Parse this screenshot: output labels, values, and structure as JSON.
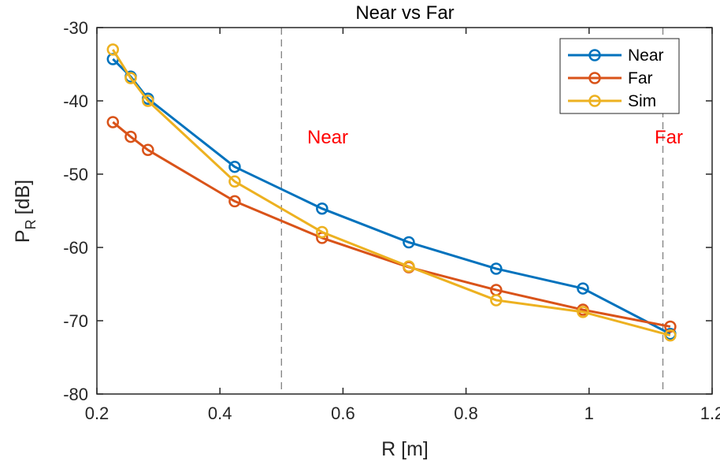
{
  "chart_data": {
    "type": "line",
    "title": "Near vs Far",
    "xlabel": "R [m]",
    "ylabel_main": "P",
    "ylabel_sub": "R",
    "ylabel_unit": "[dB]",
    "xlim": [
      0.2,
      1.2
    ],
    "ylim": [
      -80,
      -30
    ],
    "xticks": [
      "0.2",
      "0.4",
      "0.6",
      "0.8",
      "1",
      "1.2"
    ],
    "xtick_values": [
      0.2,
      0.4,
      0.6,
      0.8,
      1.0,
      1.2
    ],
    "yticks": [
      "-30",
      "-40",
      "-50",
      "-60",
      "-70",
      "-80"
    ],
    "ytick_values": [
      -30,
      -40,
      -50,
      -60,
      -70,
      -80
    ],
    "grid": false,
    "legend_position": "top-right",
    "series": [
      {
        "name": "Near",
        "color": "#0072BD",
        "x": [
          0.226,
          0.255,
          0.283,
          0.424,
          0.566,
          0.707,
          0.849,
          0.99,
          1.132
        ],
        "y": [
          -34.3,
          -36.7,
          -39.7,
          -49.0,
          -54.7,
          -59.3,
          -62.9,
          -65.6,
          -71.8
        ]
      },
      {
        "name": "Far",
        "color": "#D95319",
        "x": [
          0.226,
          0.255,
          0.283,
          0.424,
          0.566,
          0.707,
          0.849,
          0.99,
          1.132
        ],
        "y": [
          -42.9,
          -44.9,
          -46.7,
          -53.7,
          -58.7,
          -62.7,
          -65.8,
          -68.5,
          -70.8
        ]
      },
      {
        "name": "Sim",
        "color": "#EDB120",
        "x": [
          0.226,
          0.255,
          0.283,
          0.424,
          0.566,
          0.707,
          0.849,
          0.99,
          1.132
        ],
        "y": [
          -33.0,
          -36.9,
          -40.0,
          -51.0,
          -57.9,
          -62.6,
          -67.2,
          -68.8,
          -72.0
        ]
      }
    ],
    "vlines": [
      {
        "x": 0.5,
        "label": "Near",
        "label_color": "#ff0000",
        "style": "dashed"
      },
      {
        "x": 1.12,
        "label": "Far",
        "label_color": "#ff0000",
        "style": "dashed"
      }
    ]
  }
}
